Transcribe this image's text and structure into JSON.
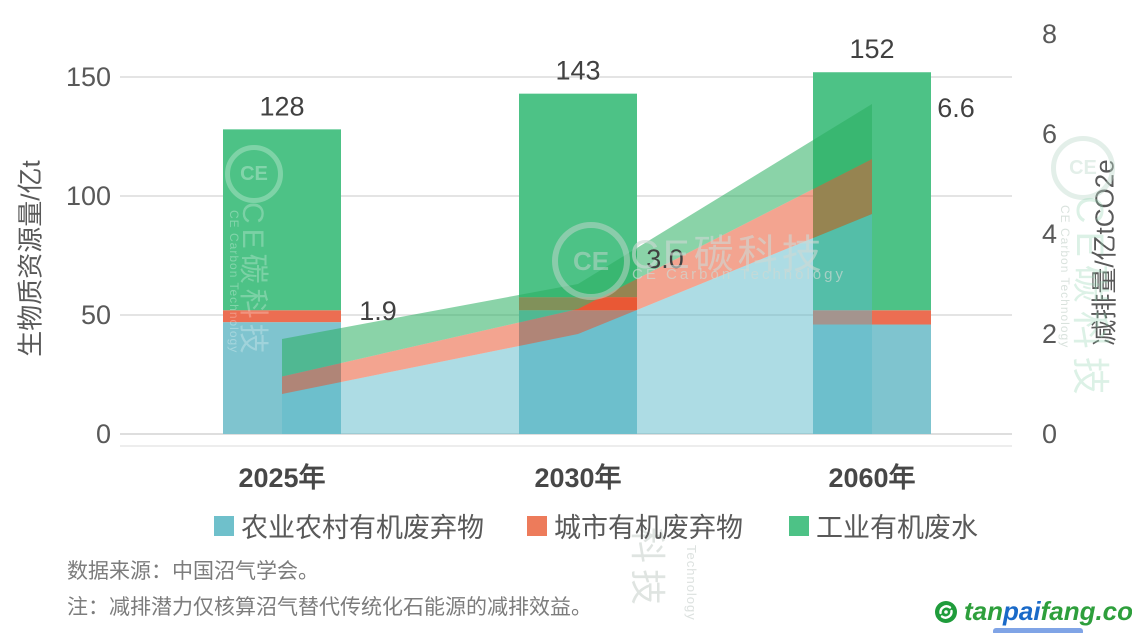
{
  "chart_data": {
    "type": "combo_bar_area",
    "categories": [
      "2025年",
      "2030年",
      "2060年"
    ],
    "bar_unit": "亿t",
    "bar_series": [
      {
        "name": "农业农村有机废弃物",
        "values": [
          47,
          52,
          46
        ],
        "color": "#7FC4CF"
      },
      {
        "name": "城市有机废弃物",
        "values": [
          5,
          5.5,
          6
        ],
        "color": "#EC6E52"
      },
      {
        "name": "工业有机废水",
        "values": [
          76,
          85.5,
          100
        ],
        "color": "#4DC286"
      }
    ],
    "bar_totals": [
      "128",
      "143",
      "152"
    ],
    "area_unit": "亿tCO2e",
    "area_series": [
      {
        "name": "农业农村有机废弃物",
        "values": [
          0.8,
          2.0,
          4.4
        ],
        "color": "#5BB9C9",
        "opacity": 0.5
      },
      {
        "name": "城市有机废弃物",
        "values": [
          0.35,
          0.5,
          1.1
        ],
        "color": "#E54117",
        "opacity": 0.48
      },
      {
        "name": "工业有机废水",
        "values": [
          0.75,
          0.5,
          1.1
        ],
        "color": "#2AAF61",
        "opacity": 0.55
      }
    ],
    "area_totals": [
      "1.9",
      "3.0",
      "6.6"
    ],
    "left_axis": {
      "title": "生物质资源量/亿t",
      "ticks": [
        150,
        100,
        50,
        0
      ],
      "min": 0,
      "max": 150
    },
    "right_axis": {
      "title": "减排量/亿tCO2e",
      "ticks": [
        8,
        6,
        4,
        2,
        0
      ],
      "min": 0,
      "max": 8
    },
    "grid": true,
    "legend_position": "bottom"
  },
  "legend": {
    "items": [
      {
        "label": "农业农村有机废弃物",
        "color": "#6FC0CB"
      },
      {
        "label": "城市有机废弃物",
        "color": "#ED7B5B"
      },
      {
        "label": "工业有机废水",
        "color": "#4DC286"
      }
    ]
  },
  "footer": {
    "source": "数据来源：中国沼气学会。",
    "note": "注：减排潜力仅核算沼气替代传统化石能源的减排效益。"
  },
  "watermark": {
    "logo_text": "CE",
    "cn": "CE碳科技",
    "cn_short": "科技",
    "en": "CE Carbon Technology",
    "en_short": "Technology"
  },
  "site_logo": {
    "part1": "tan",
    "part2": "pai",
    "part3": "fang.com",
    "color_green": "#2E9F3C",
    "color_blue": "#1A6AC8"
  }
}
